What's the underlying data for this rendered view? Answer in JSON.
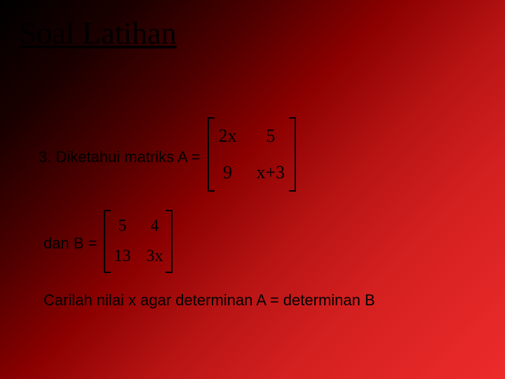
{
  "title": "Soal Latihan",
  "problem": {
    "prefix": "3. Diketahui matriks A =",
    "matrixA": {
      "r1c1": "2x",
      "r1c2": "5",
      "r2c1": "9",
      "r2c2": "x+3"
    },
    "bLabel": "dan  B =",
    "matrixB": {
      "r1c1": "5",
      "r1c2": "4",
      "r2c1": "13",
      "r2c2": "3x"
    },
    "instruction": "Carilah nilai x agar determinan A = determinan B"
  },
  "style": {
    "title_font": "Times New Roman",
    "title_size_pt": 44,
    "body_font": "Arial",
    "body_size_pt": 22,
    "matrix_font": "Times New Roman",
    "text_color": "#000000",
    "bg_gradient": [
      "#000000",
      "#1a0000",
      "#4d0000",
      "#8b0000",
      "#b81414",
      "#d42020",
      "#ed2b2b"
    ]
  }
}
